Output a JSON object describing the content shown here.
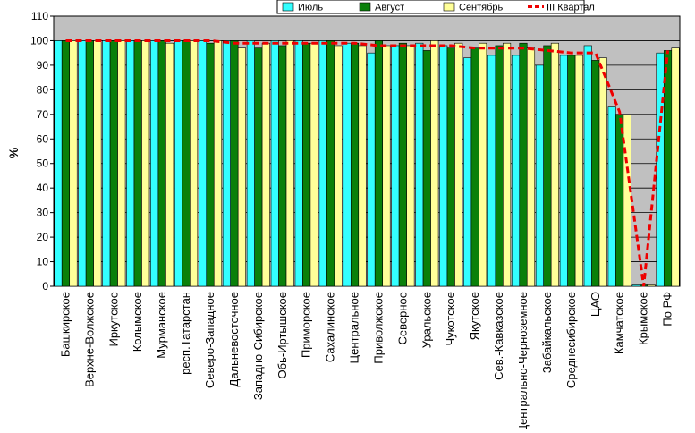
{
  "chart_data": {
    "type": "bar",
    "ylabel": "%",
    "ylim": [
      0,
      110
    ],
    "yticks": [
      0,
      10,
      20,
      30,
      40,
      50,
      60,
      70,
      80,
      90,
      100,
      110
    ],
    "grid": true,
    "legend_position": "top-right",
    "categories": [
      "Башкирское",
      "Верхне-Волжское",
      "Иркутское",
      "Колымское",
      "Мурманское",
      "респ.Татарстан",
      "Северо-Западное",
      "Дальневосточное",
      "Западно-Сибирское",
      "Обь-Иртышское",
      "Приморское",
      "Сахалинское",
      "Центральное",
      "Приволжское",
      "Северное",
      "Уральское",
      "Чукотское",
      "Якутское",
      "Сев.-Кавказское",
      "Центрально-Черноземное",
      "Забайкальское",
      "Среднесибирское",
      "ЦАО",
      "Камчатское",
      "Крымское",
      "По РФ"
    ],
    "series": [
      {
        "name": "Июль",
        "kind": "bar",
        "color": "#33ffff",
        "values": [
          100,
          100,
          100,
          100,
          100,
          100,
          100,
          100,
          100,
          100,
          100,
          100,
          99,
          95,
          98,
          99,
          98,
          93,
          94,
          94,
          90,
          94,
          98,
          73,
          0,
          95
        ]
      },
      {
        "name": "Август",
        "kind": "bar",
        "color": "#0a800a",
        "values": [
          100,
          100,
          100,
          100,
          100,
          100,
          99,
          100,
          97,
          98,
          99,
          100,
          99,
          100,
          99,
          96,
          97,
          97,
          98,
          99,
          98,
          94,
          92,
          70,
          0,
          96
        ]
      },
      {
        "name": "Сентябрь",
        "kind": "bar",
        "color": "#ffff99",
        "values": [
          100,
          100,
          100,
          100,
          99,
          100,
          100,
          97,
          99,
          100,
          99,
          98,
          98,
          98,
          98,
          100,
          99,
          99,
          99,
          97,
          99,
          94,
          93,
          70,
          0,
          97
        ]
      },
      {
        "name": "III Квартал",
        "kind": "line",
        "color": "#ee0000",
        "values": [
          100,
          100,
          100,
          100,
          100,
          100,
          100,
          99,
          99,
          99,
          99,
          99,
          99,
          98,
          98,
          98,
          98,
          97,
          97,
          97,
          96,
          95,
          95,
          71,
          0,
          96
        ]
      }
    ]
  }
}
